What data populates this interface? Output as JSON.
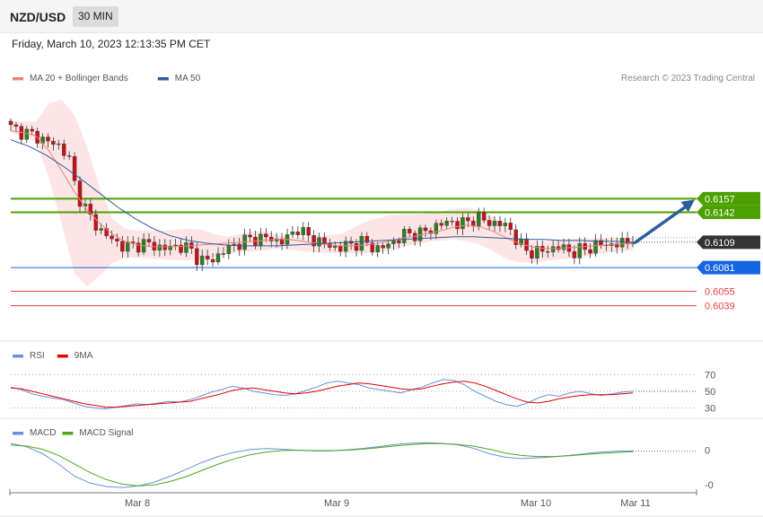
{
  "header": {
    "symbol": "NZD/USD",
    "timeframe": "30 MIN",
    "datetime": "Friday, March 10, 2023 12:13:35 PM CET"
  },
  "legend": {
    "main": [
      {
        "label": "MA 20 + Bollinger Bands",
        "color": "#f08080"
      },
      {
        "label": "MA 50",
        "color": "#2f5b9a"
      }
    ],
    "rsi": [
      {
        "label": "RSI",
        "color": "#6a8fdc"
      },
      {
        "label": "9MA",
        "color": "#e00000"
      }
    ],
    "macd": [
      {
        "label": "MACD",
        "color": "#6a8fdc"
      },
      {
        "label": "MACD Signal",
        "color": "#4ca81e"
      }
    ]
  },
  "attribution": "Research © 2023 Trading Central",
  "chart_data": {
    "type": "candlestick",
    "ylim": [
      0.6002,
      0.6287
    ],
    "levels": [
      {
        "value": 0.6157,
        "label": "0.6157",
        "color": "#4ca000",
        "style": "resistance"
      },
      {
        "value": 0.6142,
        "label": "0.6142",
        "color": "#4ca000",
        "style": "resistance"
      },
      {
        "value": 0.6109,
        "label": "0.6109",
        "color": "#333333",
        "style": "last"
      },
      {
        "value": 0.6081,
        "label": "0.6081",
        "color": "#1565e0",
        "style": "support"
      },
      {
        "value": 0.6055,
        "label": "0.6055",
        "color": "#e04040",
        "style": "support2"
      },
      {
        "value": 0.6039,
        "label": "0.6039",
        "color": "#e04040",
        "style": "support2"
      }
    ],
    "projection": {
      "from": 0.6109,
      "to": 0.6157
    },
    "x_labels": [
      "Mar 8",
      "Mar 9",
      "Mar 10",
      "Mar 11"
    ],
    "price_path": [
      0.6235,
      0.6232,
      0.6229,
      0.6226,
      0.6222,
      0.6218,
      0.6215,
      0.6205,
      0.6165,
      0.6148,
      0.6132,
      0.6122,
      0.6114,
      0.6108,
      0.6104,
      0.6105,
      0.6108,
      0.6106,
      0.6104,
      0.6102,
      0.6104,
      0.6105,
      0.61,
      0.609,
      0.6088,
      0.6092,
      0.6099,
      0.6104,
      0.6109,
      0.6112,
      0.6113,
      0.6114,
      0.6112,
      0.611,
      0.6114,
      0.6126,
      0.6116,
      0.6112,
      0.6109,
      0.6104,
      0.6103,
      0.6105,
      0.6108,
      0.6109,
      0.6105,
      0.6101,
      0.6106,
      0.6111,
      0.6117,
      0.6119,
      0.6118,
      0.6122,
      0.6127,
      0.613,
      0.6132,
      0.6128,
      0.6133,
      0.6136,
      0.6132,
      0.613,
      0.6129,
      0.6124,
      0.6108,
      0.61,
      0.6098,
      0.6099,
      0.6102,
      0.6104,
      0.61,
      0.6098,
      0.6101,
      0.6104,
      0.6107,
      0.6106,
      0.6107,
      0.6108,
      0.6109
    ],
    "ma20": [
      0.6232,
      0.623,
      0.6226,
      0.621,
      0.6188,
      0.6165,
      0.6145,
      0.613,
      0.6118,
      0.611,
      0.6106,
      0.6104,
      0.6104,
      0.6104,
      0.6105,
      0.6106,
      0.6107,
      0.6108,
      0.6109,
      0.611,
      0.6111,
      0.6112,
      0.6112,
      0.611,
      0.6108,
      0.6106,
      0.6105,
      0.6105,
      0.6106,
      0.6108,
      0.6111,
      0.6114,
      0.6116,
      0.6119,
      0.6122,
      0.6126,
      0.6128,
      0.6126,
      0.6121,
      0.6114,
      0.6108,
      0.6104,
      0.6102,
      0.6102,
      0.6103,
      0.6104,
      0.6105,
      0.6106,
      0.6107,
      0.6108
    ],
    "bb_upper": [
      0.6242,
      0.6242,
      0.6242,
      0.6262,
      0.6266,
      0.625,
      0.6215,
      0.617,
      0.6135,
      0.6124,
      0.6122,
      0.6122,
      0.6122,
      0.6123,
      0.6124,
      0.6123,
      0.6118,
      0.6115,
      0.6118,
      0.6121,
      0.6121,
      0.6117,
      0.6114,
      0.6114,
      0.6116,
      0.6117,
      0.6118,
      0.6125,
      0.6132,
      0.6136,
      0.6139,
      0.614,
      0.614,
      0.6141,
      0.6143,
      0.6146,
      0.6147,
      0.6144,
      0.6137,
      0.6126,
      0.6114,
      0.611,
      0.611,
      0.6111,
      0.6112,
      0.6113,
      0.6113,
      0.6114,
      0.6114,
      0.6114
    ],
    "bb_lower": [
      0.623,
      0.6225,
      0.622,
      0.618,
      0.613,
      0.6075,
      0.606,
      0.6072,
      0.6086,
      0.6092,
      0.6092,
      0.6091,
      0.609,
      0.6089,
      0.6089,
      0.609,
      0.6093,
      0.6096,
      0.6098,
      0.6099,
      0.61,
      0.6102,
      0.6101,
      0.6099,
      0.6098,
      0.6097,
      0.6097,
      0.6097,
      0.6097,
      0.6098,
      0.61,
      0.6104,
      0.6107,
      0.611,
      0.6111,
      0.6112,
      0.611,
      0.6106,
      0.6099,
      0.6091,
      0.6087,
      0.6086,
      0.6088,
      0.609,
      0.6091,
      0.6093,
      0.6095,
      0.6097,
      0.6099,
      0.61
    ],
    "ma50": [
      0.6222,
      0.6215,
      0.6205,
      0.6192,
      0.6178,
      0.6163,
      0.6148,
      0.6135,
      0.6124,
      0.6116,
      0.6111,
      0.6108,
      0.6106,
      0.6105,
      0.6105,
      0.6105,
      0.6106,
      0.6107,
      0.6108,
      0.6109,
      0.611,
      0.6111,
      0.6112,
      0.6113,
      0.6114,
      0.6115,
      0.6115,
      0.6114,
      0.6113,
      0.6112,
      0.6112,
      0.6111,
      0.6111,
      0.611,
      0.611,
      0.6109
    ],
    "rsi": {
      "ylim": [
        22,
        80
      ],
      "ticks": [
        70,
        50,
        30
      ],
      "rsi": [
        55,
        52,
        47,
        44,
        42,
        40,
        36,
        32,
        30,
        29,
        31,
        33,
        35,
        34,
        36,
        38,
        37,
        40,
        44,
        49,
        52,
        56,
        54,
        50,
        48,
        46,
        45,
        47,
        51,
        55,
        60,
        62,
        60,
        58,
        54,
        52,
        50,
        48,
        52,
        55,
        60,
        64,
        63,
        58,
        50,
        44,
        38,
        34,
        32,
        36,
        42,
        46,
        44,
        48,
        50,
        47,
        45,
        47,
        49,
        50
      ],
      "ma9": [
        54,
        53,
        50,
        47,
        44,
        41,
        38,
        35,
        33,
        31,
        31,
        32,
        33,
        34,
        35,
        36,
        37,
        38,
        41,
        44,
        47,
        51,
        53,
        54,
        52,
        50,
        48,
        47,
        48,
        50,
        53,
        56,
        58,
        60,
        59,
        57,
        55,
        53,
        52,
        53,
        56,
        59,
        61,
        62,
        60,
        56,
        51,
        46,
        41,
        37,
        36,
        38,
        41,
        43,
        45,
        46,
        46,
        46,
        47,
        48
      ]
    },
    "macd": {
      "ticks": [
        0,
        -0.001
      ],
      "ylim": [
        -0.00115,
        0.00025
      ],
      "macd": [
        0.0002,
        0.0001,
        -0.0001,
        -0.0004,
        -0.00075,
        -0.00095,
        -0.00105,
        -0.00108,
        -0.00103,
        -0.00092,
        -0.00075,
        -0.00055,
        -0.00035,
        -0.00018,
        -6e-05,
        2e-05,
        5e-05,
        3e-05,
        0.0,
        -2e-05,
        -2e-05,
        1e-05,
        5e-05,
        0.0001,
        0.00016,
        0.0002,
        0.00022,
        0.0002,
        0.00016,
        6e-05,
        -0.0001,
        -0.0002,
        -0.00024,
        -0.00022,
        -0.00019,
        -0.00015,
        -0.0001,
        -5e-05,
        -3e-05,
        -2e-05
      ],
      "signal": [
        0.00015,
        0.00012,
        3e-05,
        -0.00015,
        -0.0004,
        -0.00065,
        -0.00085,
        -0.00098,
        -0.00103,
        -0.001,
        -0.0009,
        -0.00076,
        -0.00058,
        -0.0004,
        -0.00025,
        -0.00013,
        -5e-05,
        -1e-05,
        0.0,
        -1e-05,
        -1e-05,
        0.0,
        3e-05,
        7e-05,
        0.00012,
        0.00016,
        0.00019,
        0.00019,
        0.00017,
        0.00012,
        3e-05,
        -8e-05,
        -0.00015,
        -0.00018,
        -0.00018,
        -0.00016,
        -0.00012,
        -9e-05,
        -6e-05,
        -4e-05
      ]
    }
  }
}
